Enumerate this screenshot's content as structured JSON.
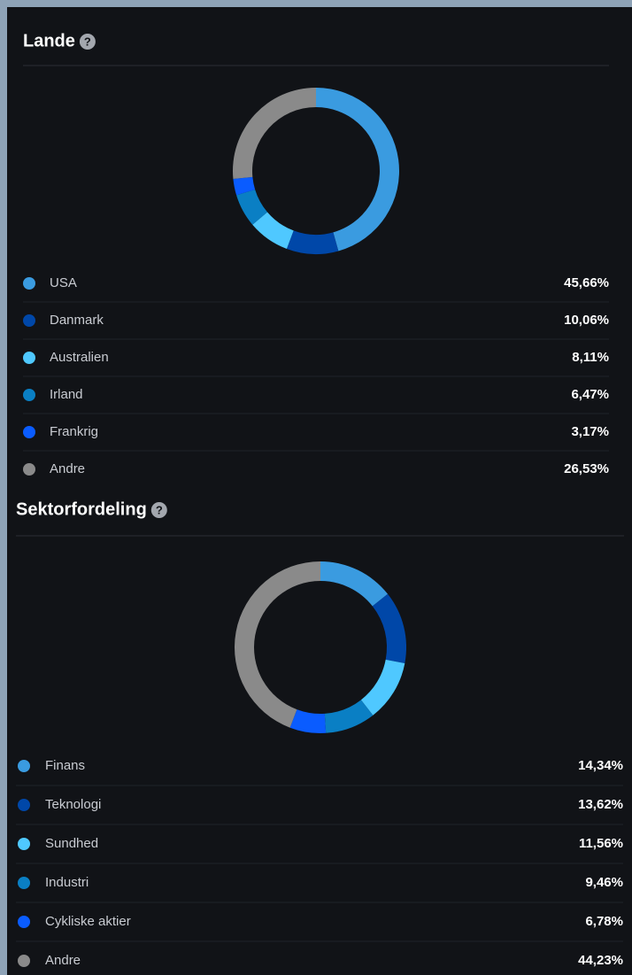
{
  "chart_data": [
    {
      "type": "pie",
      "donut": true,
      "title": "Lande",
      "categories": [
        "USA",
        "Danmark",
        "Australien",
        "Irland",
        "Frankrig",
        "Andre"
      ],
      "values": [
        45.66,
        10.06,
        8.11,
        6.47,
        3.17,
        26.53
      ],
      "value_labels": [
        "45,66%",
        "10,06%",
        "8,11%",
        "6,47%",
        "3,17%",
        "26,53%"
      ],
      "colors": [
        "#3a9be0",
        "#0047a8",
        "#4fc8ff",
        "#0a7fc4",
        "#0a5cff",
        "#8a8a8a"
      ]
    },
    {
      "type": "pie",
      "donut": true,
      "title": "Sektorfordeling",
      "categories": [
        "Finans",
        "Teknologi",
        "Sundhed",
        "Industri",
        "Cykliske aktier",
        "Andre"
      ],
      "values": [
        14.34,
        13.62,
        11.56,
        9.46,
        6.78,
        44.23
      ],
      "value_labels": [
        "14,34%",
        "13,62%",
        "11,56%",
        "9,46%",
        "6,78%",
        "44,23%"
      ],
      "colors": [
        "#3a9be0",
        "#0047a8",
        "#4fc8ff",
        "#0a7fc4",
        "#0a5cff",
        "#8a8a8a"
      ]
    }
  ]
}
